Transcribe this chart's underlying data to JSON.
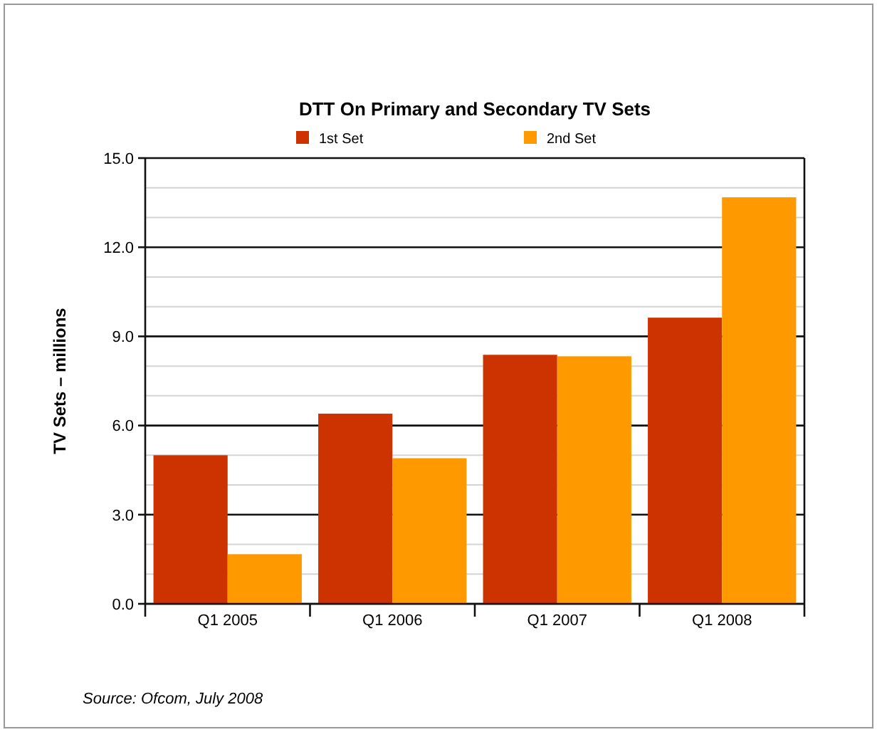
{
  "chart_data": {
    "type": "bar",
    "title": "DTT On Primary and Secondary TV Sets",
    "ylabel": "TV Sets – millions",
    "categories": [
      "Q1 2005",
      "Q1 2006",
      "Q1 2007",
      "Q1 2008"
    ],
    "series": [
      {
        "name": "1st Set",
        "color": "#cc3300",
        "values": [
          5.0,
          6.4,
          8.38,
          9.63
        ]
      },
      {
        "name": "2nd Set",
        "color": "#ff9900",
        "values": [
          1.67,
          4.9,
          8.33,
          13.68
        ]
      }
    ],
    "ylim": [
      0,
      15
    ],
    "yticks": [
      {
        "value": 0,
        "label": "0.0"
      },
      {
        "value": 1,
        "label": null
      },
      {
        "value": 2,
        "label": null
      },
      {
        "value": 3,
        "label": "3.0"
      },
      {
        "value": 4,
        "label": null
      },
      {
        "value": 5,
        "label": null
      },
      {
        "value": 6,
        "label": "6.0"
      },
      {
        "value": 7,
        "label": null
      },
      {
        "value": 8,
        "label": null
      },
      {
        "value": 9,
        "label": "9.0"
      },
      {
        "value": 10,
        "label": null
      },
      {
        "value": 11,
        "label": null
      },
      {
        "value": 12,
        "label": "12.0"
      },
      {
        "value": 13,
        "label": null
      },
      {
        "value": 14,
        "label": null
      },
      {
        "value": 15,
        "label": "15.0"
      }
    ],
    "grid": "y",
    "legend": "top",
    "annotations": [
      "Source: Ofcom, July 2008"
    ]
  }
}
